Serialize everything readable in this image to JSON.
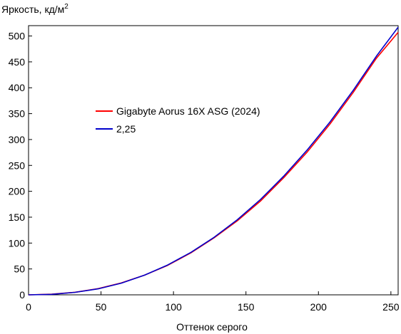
{
  "chart_data": {
    "type": "line",
    "title": "",
    "ylabel": "Яркость, кд/м",
    "ylabel_superscript": "2",
    "xlabel": "Оттенок серого",
    "xlim": [
      0,
      255
    ],
    "ylim": [
      0,
      520
    ],
    "xticks": [
      0,
      50,
      100,
      150,
      200,
      250
    ],
    "yticks": [
      0,
      50,
      100,
      150,
      200,
      250,
      300,
      350,
      400,
      450,
      500
    ],
    "grid": false,
    "legend_position": "center-left",
    "series": [
      {
        "name": "Gigabyte Aorus 16X ASG (2024)",
        "color": "#ff0000",
        "x": [
          0,
          16,
          32,
          48,
          64,
          80,
          96,
          112,
          128,
          144,
          160,
          176,
          192,
          208,
          224,
          240,
          255
        ],
        "y": [
          0,
          1.2,
          5,
          12,
          23,
          38,
          57,
          81,
          110,
          143,
          181,
          226,
          275,
          330,
          391,
          457,
          507
        ]
      },
      {
        "name": "2,25",
        "color": "#0000cc",
        "x": [
          0,
          16,
          32,
          48,
          64,
          80,
          96,
          112,
          128,
          144,
          160,
          176,
          192,
          208,
          224,
          240,
          255
        ],
        "y": [
          0,
          1.0,
          4.8,
          11.6,
          22.6,
          37.9,
          57.6,
          82,
          111,
          145,
          184,
          229,
          279,
          334,
          395,
          461,
          517
        ]
      }
    ]
  }
}
